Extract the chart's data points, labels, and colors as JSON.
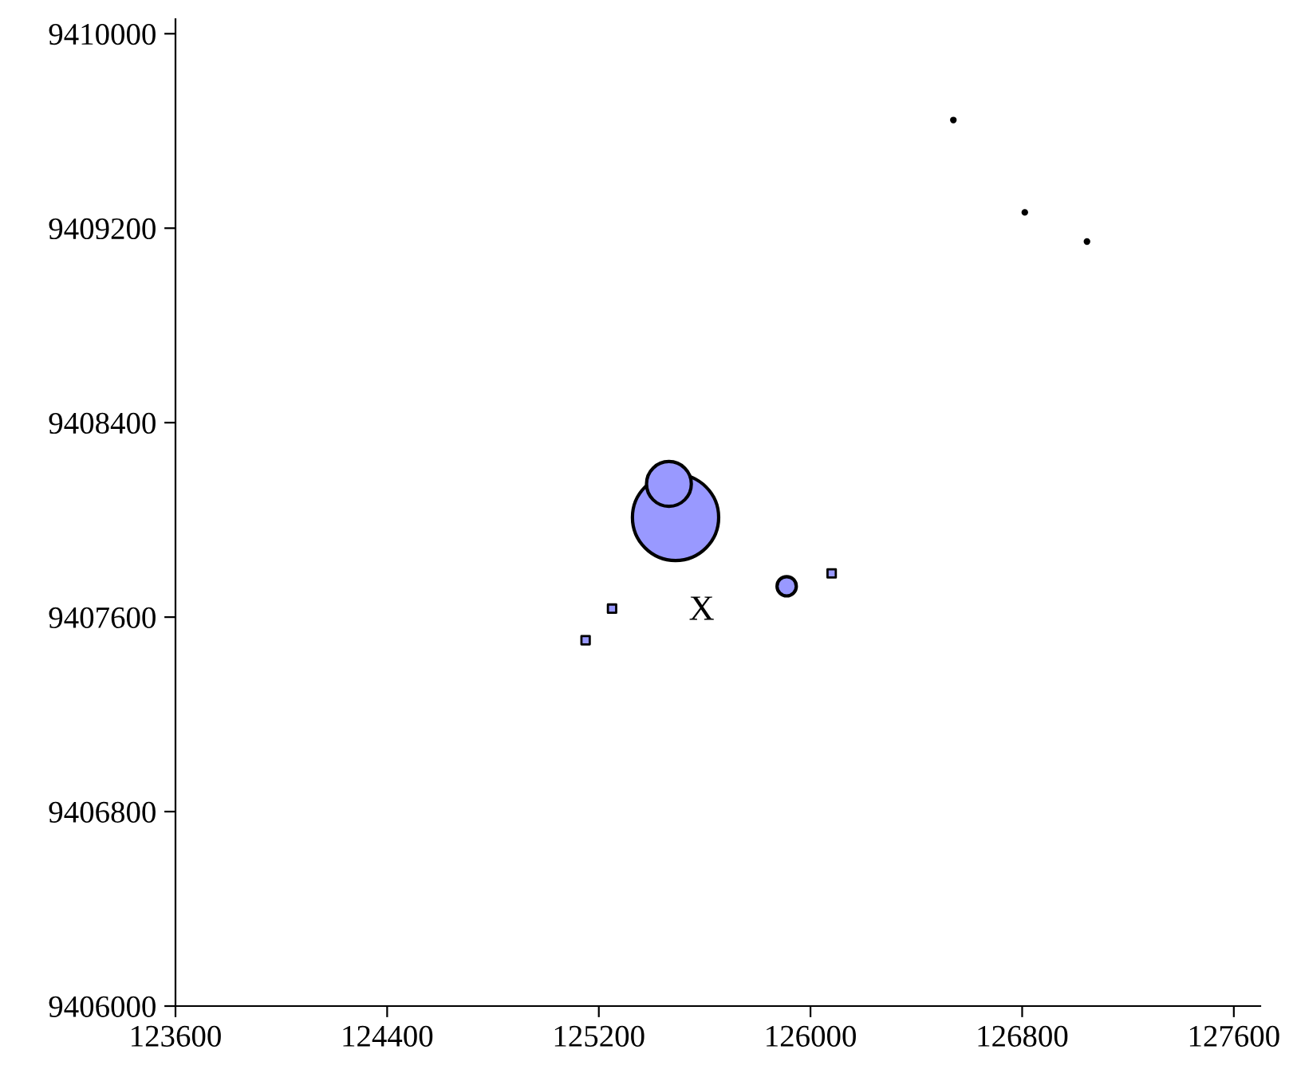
{
  "chart_data": {
    "type": "bubble",
    "xlim": [
      123600,
      127700
    ],
    "ylim": [
      9406000,
      9410060
    ],
    "xticks": [
      123600,
      124400,
      125200,
      126000,
      126800,
      127600
    ],
    "yticks": [
      9406000,
      9406800,
      9407600,
      9408400,
      9409200,
      9410000
    ],
    "grid": false,
    "legend": false,
    "series": [
      {
        "color": "#9999ff",
        "x": [
          125490,
          125910,
          125465
        ],
        "values": [
          9408010,
          9407727,
          9408148
        ],
        "sizes": [
          1,
          0.05,
          0.27
        ]
      },
      {
        "type": "scatter",
        "marker": "square",
        "color": "#9999ff",
        "x": [
          126080,
          125250,
          125150
        ],
        "values": [
          9407780,
          9407635,
          9407505
        ]
      },
      {
        "type": "scatter",
        "marker": "circle",
        "color": "#000000",
        "x": [
          126540,
          126810,
          127045
        ],
        "values": [
          9409645,
          9409265,
          9409145
        ]
      }
    ],
    "annotations": [
      "X"
    ]
  }
}
